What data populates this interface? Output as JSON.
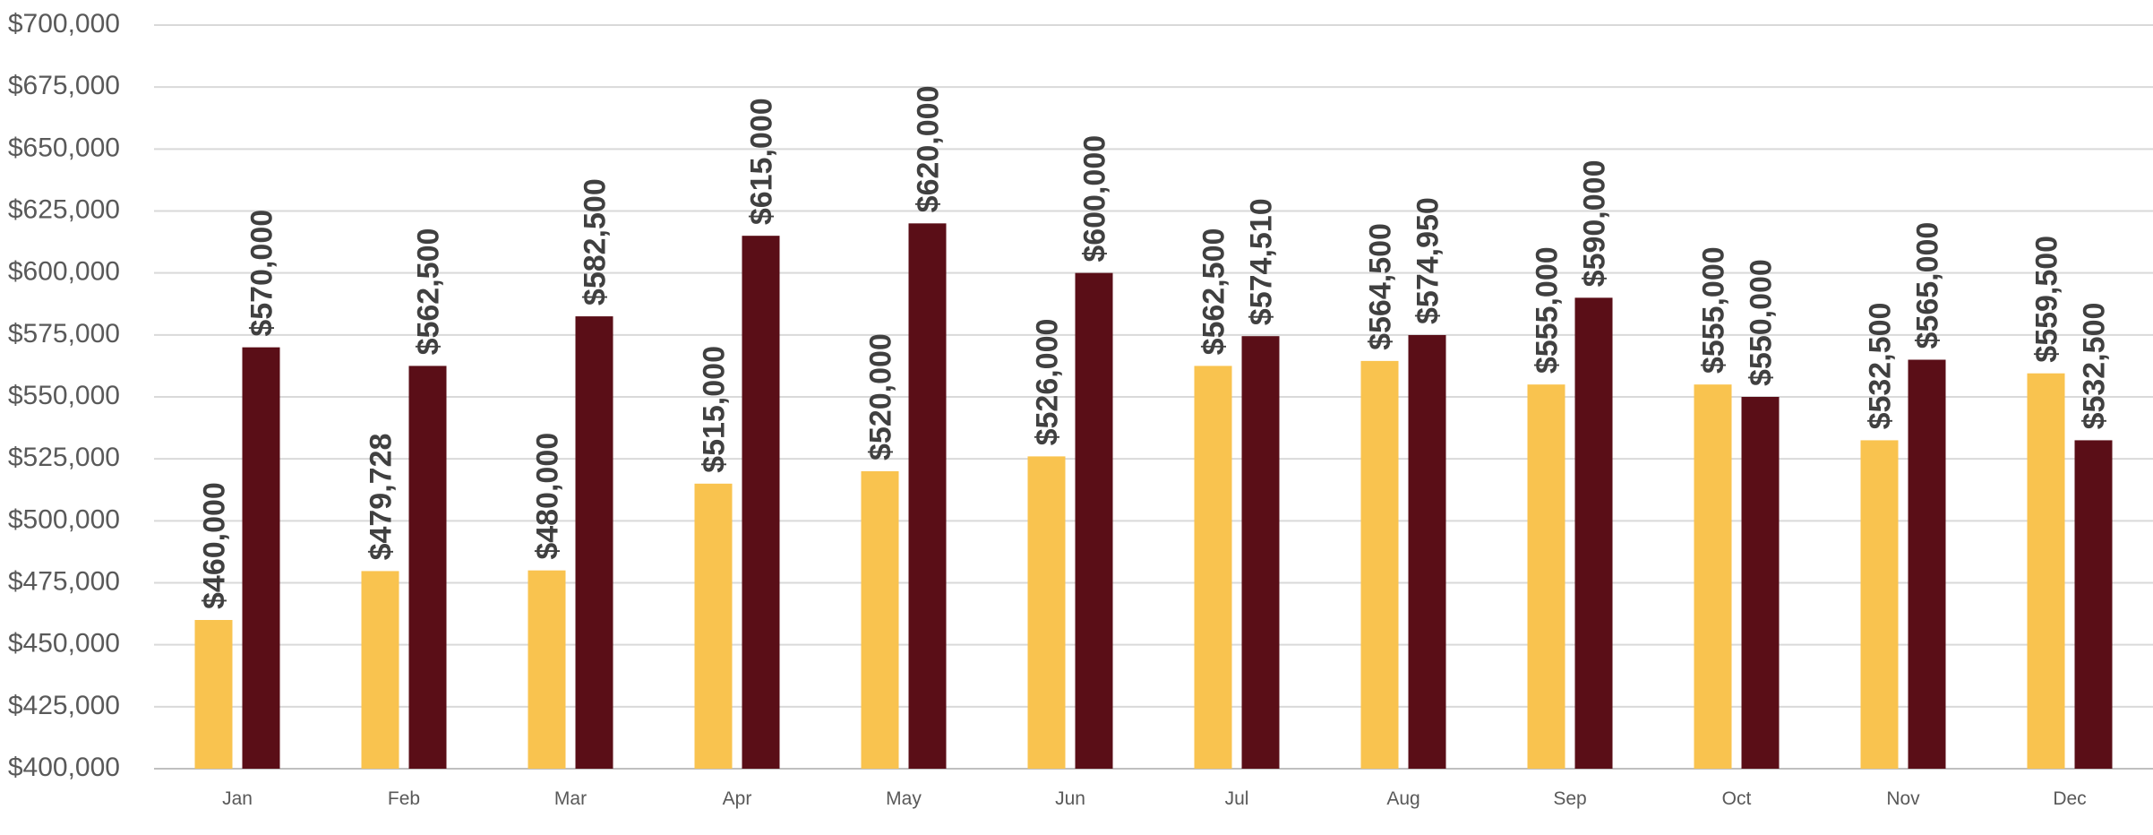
{
  "chart_data": {
    "type": "bar",
    "categories": [
      "Jan",
      "Feb",
      "Mar",
      "Apr",
      "May",
      "Jun",
      "Jul",
      "Aug",
      "Sep",
      "Oct",
      "Nov",
      "Dec"
    ],
    "series": [
      {
        "color": "#F9C34F",
        "values": [
          460000,
          479728,
          480000,
          515000,
          520000,
          526000,
          562500,
          564500,
          555000,
          555000,
          532500,
          559500
        ],
        "labels": [
          "$460,000",
          "$479,728",
          "$480,000",
          "$515,000",
          "$520,000",
          "$526,000",
          "$562,500",
          "$564,500",
          "$555,000",
          "$555,000",
          "$532,500",
          "$559,500"
        ]
      },
      {
        "color": "#5A0E17",
        "values": [
          570000,
          562500,
          582500,
          615000,
          620000,
          600000,
          574510,
          574950,
          590000,
          550000,
          565000,
          532500
        ],
        "labels": [
          "$570,000",
          "$562,500",
          "$582,500",
          "$615,000",
          "$620,000",
          "$600,000",
          "$574,510",
          "$574,950",
          "$590,000",
          "$550,000",
          "$565,000",
          "$532,500"
        ]
      }
    ],
    "ylim": [
      400000,
      700000
    ],
    "yticks": [
      400000,
      425000,
      450000,
      475000,
      500000,
      525000,
      550000,
      575000,
      600000,
      625000,
      650000,
      675000,
      700000
    ],
    "ytick_labels": [
      "$400,000",
      "$425,000",
      "$450,000",
      "$475,000",
      "$500,000",
      "$525,000",
      "$550,000",
      "$575,000",
      "$600,000",
      "$625,000",
      "$650,000",
      "$675,000",
      "$700,000"
    ],
    "grid": true,
    "legend": "none",
    "title": "",
    "xlabel": "",
    "ylabel": ""
  }
}
